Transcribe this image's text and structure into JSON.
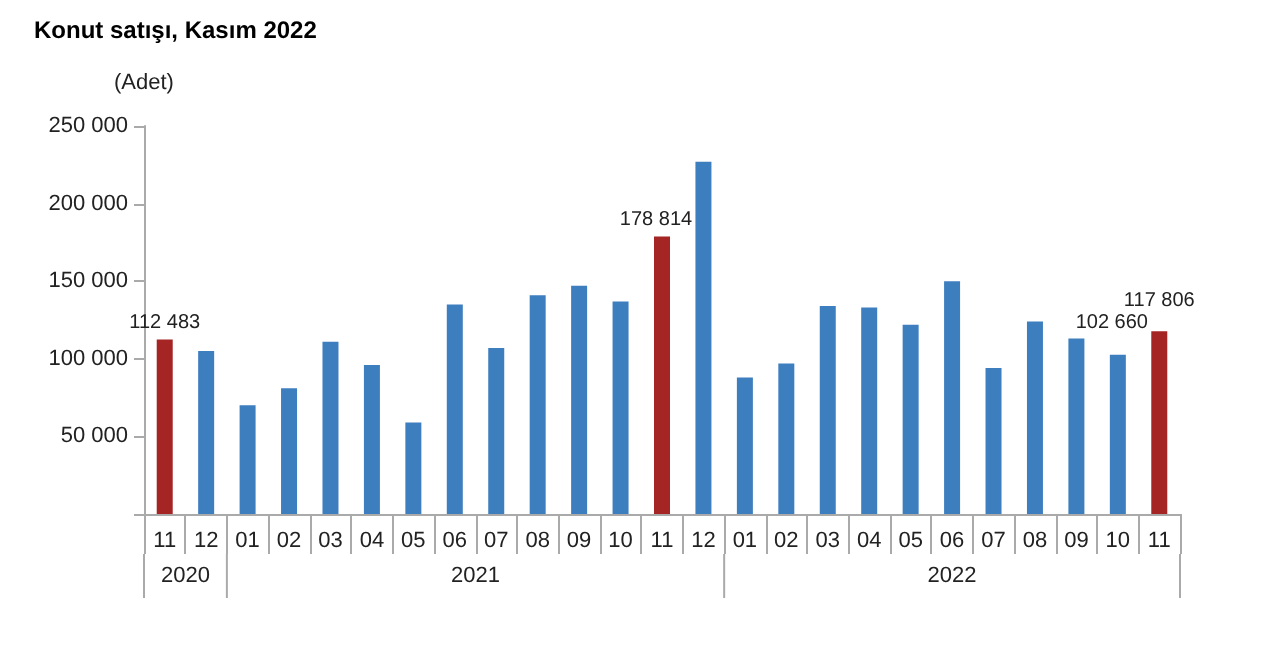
{
  "chart_data": {
    "type": "bar",
    "title": "Konut satışı, Kasım 2022",
    "ylabel": "(Adet)",
    "categories": [
      "11",
      "12",
      "01",
      "02",
      "03",
      "04",
      "05",
      "06",
      "07",
      "08",
      "09",
      "10",
      "11",
      "12",
      "01",
      "02",
      "03",
      "04",
      "05",
      "06",
      "07",
      "08",
      "09",
      "10",
      "11"
    ],
    "values": [
      112483,
      105000,
      70000,
      81000,
      111000,
      96000,
      59000,
      135000,
      107000,
      141000,
      147000,
      137000,
      178814,
      227000,
      88000,
      97000,
      134000,
      133000,
      122000,
      150000,
      94000,
      124000,
      113000,
      102660,
      117806
    ],
    "colors": [
      "#a52524",
      "#3d7ebf",
      "#3d7ebf",
      "#3d7ebf",
      "#3d7ebf",
      "#3d7ebf",
      "#3d7ebf",
      "#3d7ebf",
      "#3d7ebf",
      "#3d7ebf",
      "#3d7ebf",
      "#3d7ebf",
      "#a52524",
      "#3d7ebf",
      "#3d7ebf",
      "#3d7ebf",
      "#3d7ebf",
      "#3d7ebf",
      "#3d7ebf",
      "#3d7ebf",
      "#3d7ebf",
      "#3d7ebf",
      "#3d7ebf",
      "#3d7ebf",
      "#a52524"
    ],
    "value_labels": [
      "112 483",
      null,
      null,
      null,
      null,
      null,
      null,
      null,
      null,
      null,
      null,
      null,
      "178 814",
      null,
      null,
      null,
      null,
      null,
      null,
      null,
      null,
      null,
      null,
      "102 660",
      "117 806"
    ],
    "annotations": [
      "2020",
      "2021",
      "2022"
    ],
    "ylim": [
      0,
      250000
    ],
    "yticks": [
      {
        "value": 0,
        "label": null
      },
      {
        "value": 50000,
        "label": "50 000"
      },
      {
        "value": 100000,
        "label": "100 000"
      },
      {
        "value": 150000,
        "label": "150 000"
      },
      {
        "value": 200000,
        "label": "200 000"
      },
      {
        "value": 250000,
        "label": "250 000"
      }
    ],
    "grid": false
  }
}
